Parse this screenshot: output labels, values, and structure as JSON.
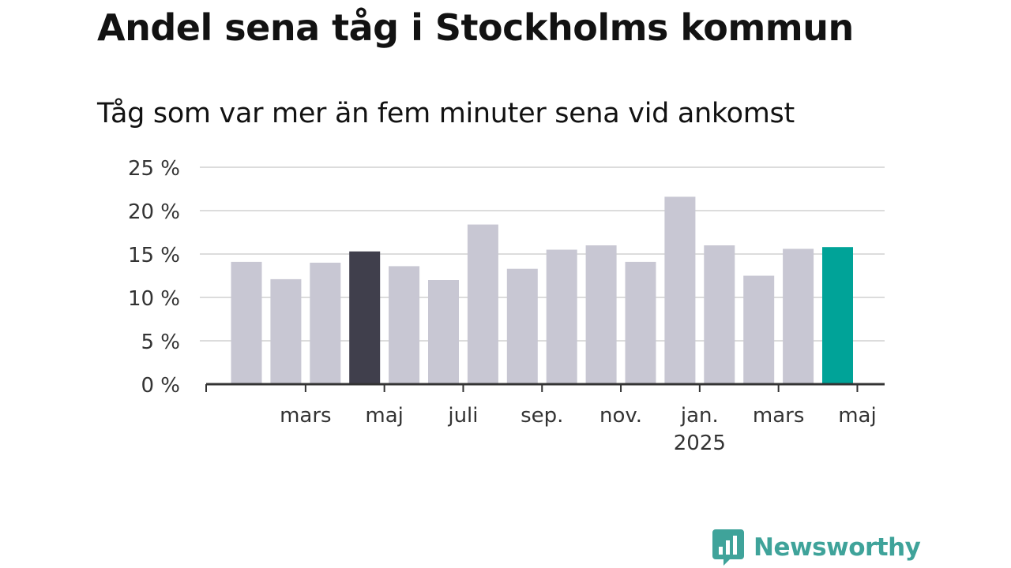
{
  "title": "Andel sena tåg i Stockholms kommun",
  "subtitle": "Tåg som var mer än fem minuter sena vid ankomst",
  "brand": {
    "name": "Newsworthy",
    "logo_icon": "bar-chart-speech-bubble-icon",
    "color": "#3fa39a"
  },
  "colors": {
    "default_bar": "#c8c7d3",
    "highlight_previous_year": "#403f4c",
    "highlight_current": "#00a398",
    "gridline": "#dcdcdc",
    "axis": "#333333"
  },
  "chart_data": {
    "type": "bar",
    "title": "Andel sena tåg i Stockholms kommun",
    "subtitle": "Tåg som var mer än fem minuter sena vid ankomst",
    "xlabel": "",
    "ylabel": "",
    "ylim": [
      0,
      25
    ],
    "yticks": [
      0,
      5,
      10,
      15,
      20,
      25
    ],
    "ytick_labels": [
      "0 %",
      "5 %",
      "10 %",
      "15 %",
      "20 %",
      "25 %"
    ],
    "grid": true,
    "categories": [
      "2024-02",
      "2024-03",
      "2024-04",
      "2024-05",
      "2024-06",
      "2024-07",
      "2024-08",
      "2024-09",
      "2024-10",
      "2024-11",
      "2024-12",
      "2025-01",
      "2025-02",
      "2025-03",
      "2025-04",
      "2025-05"
    ],
    "values": [
      14.1,
      12.1,
      14.0,
      15.3,
      13.6,
      12.0,
      18.4,
      13.3,
      15.5,
      16.0,
      14.1,
      21.6,
      16.0,
      12.5,
      15.6,
      15.8
    ],
    "highlight": {
      "2024-05": "highlight_previous_year",
      "2025-05": "highlight_current"
    },
    "x_ticks": [
      {
        "category": "2024-03",
        "label": "mars"
      },
      {
        "category": "2024-05",
        "label": "maj"
      },
      {
        "category": "2024-07",
        "label": "juli"
      },
      {
        "category": "2024-09",
        "label": "sep."
      },
      {
        "category": "2024-11",
        "label": "nov."
      },
      {
        "category": "2025-01",
        "label": "jan.",
        "sublabel": "2025"
      },
      {
        "category": "2025-03",
        "label": "mars"
      },
      {
        "category": "2025-05",
        "label": "maj"
      }
    ]
  }
}
